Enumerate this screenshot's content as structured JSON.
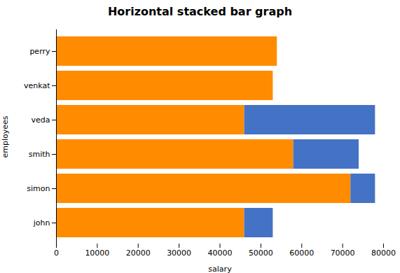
{
  "chart_data": {
    "type": "bar",
    "orientation": "horizontal",
    "stacked": true,
    "title": "Horizontal stacked bar graph",
    "xlabel": "salary",
    "ylabel": "employees",
    "categories": [
      "john",
      "simon",
      "smith",
      "veda",
      "venkat",
      "perry"
    ],
    "series": [
      {
        "color": "#FF8C00",
        "values": [
          46000,
          72000,
          58000,
          46000,
          53000,
          54000
        ]
      },
      {
        "color": "#4472C4",
        "values": [
          7000,
          6000,
          16000,
          32000,
          0,
          0
        ]
      }
    ],
    "xlim": [
      0,
      80000
    ],
    "xticks": [
      0,
      10000,
      20000,
      30000,
      40000,
      50000,
      60000,
      70000,
      80000
    ],
    "grid": false
  }
}
